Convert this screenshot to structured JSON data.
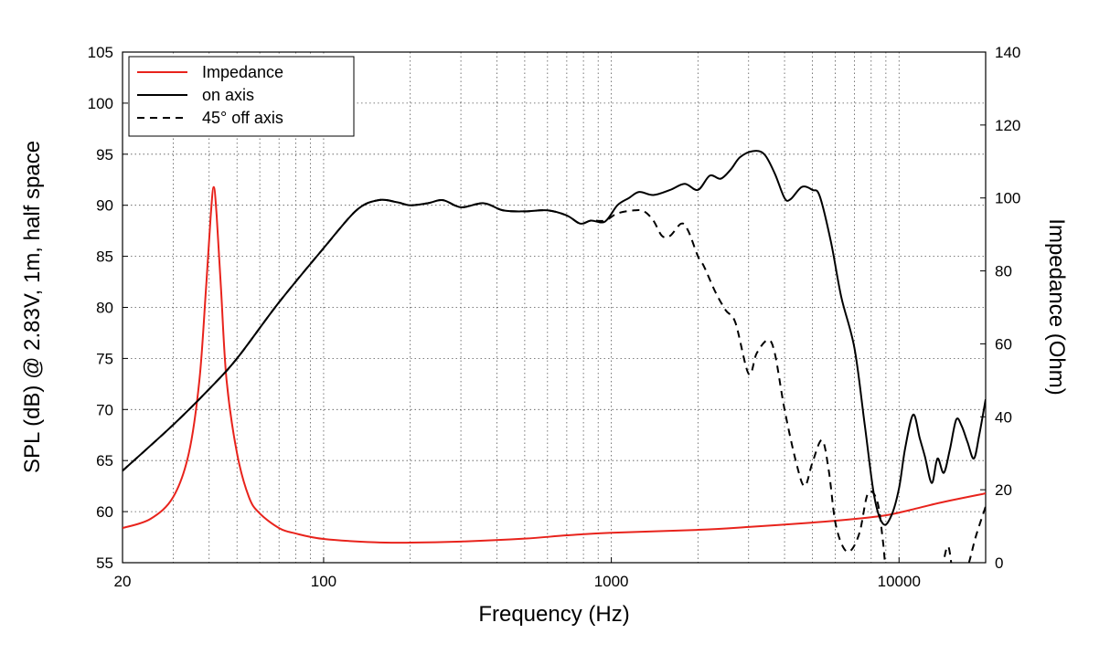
{
  "chart_data": {
    "type": "line",
    "title": "",
    "xlabel": "Frequency (Hz)",
    "ylabel": "SPL (dB) @ 2.83V, 1m, half space",
    "y2label": "Impedance (Ohm)",
    "x_scale": "log",
    "xlim": [
      20,
      20000
    ],
    "ylim": [
      55,
      105
    ],
    "y2lim": [
      0,
      140
    ],
    "x_ticks": [
      20,
      100,
      1000,
      10000
    ],
    "x_tick_labels": [
      "20",
      "100",
      "1000",
      "10000"
    ],
    "y_ticks": [
      55,
      60,
      65,
      70,
      75,
      80,
      85,
      90,
      95,
      100,
      105
    ],
    "y_tick_labels": [
      "55",
      "60",
      "65",
      "70",
      "75",
      "80",
      "85",
      "90",
      "95",
      "100",
      "105"
    ],
    "y2_ticks": [
      0,
      20,
      40,
      60,
      80,
      100,
      120,
      140
    ],
    "y2_tick_labels": [
      "0",
      "20",
      "40",
      "60",
      "80",
      "100",
      "120",
      "140"
    ],
    "grid": true,
    "legend_position": "top-left",
    "series": [
      {
        "name": "Impedance",
        "axis": "right",
        "color": "#e8231c",
        "dash": "solid",
        "points": [
          [
            20,
            9.5
          ],
          [
            25,
            12
          ],
          [
            30,
            18
          ],
          [
            34,
            30
          ],
          [
            37,
            50
          ],
          [
            39,
            75
          ],
          [
            40.5,
            95
          ],
          [
            41.5,
            103
          ],
          [
            42.5,
            95
          ],
          [
            44,
            75
          ],
          [
            46,
            50
          ],
          [
            50,
            30
          ],
          [
            55,
            18
          ],
          [
            60,
            13.5
          ],
          [
            70,
            9.5
          ],
          [
            80,
            8
          ],
          [
            100,
            6.5
          ],
          [
            150,
            5.6
          ],
          [
            200,
            5.5
          ],
          [
            300,
            5.8
          ],
          [
            500,
            6.6
          ],
          [
            700,
            7.5
          ],
          [
            1000,
            8.2
          ],
          [
            2000,
            9
          ],
          [
            3000,
            9.8
          ],
          [
            5000,
            11
          ],
          [
            7000,
            12
          ],
          [
            9000,
            13
          ],
          [
            11000,
            14.5
          ],
          [
            14000,
            16.5
          ],
          [
            20000,
            19
          ]
        ]
      },
      {
        "name": "on axis",
        "axis": "left",
        "color": "#000000",
        "dash": "solid",
        "points": [
          [
            20,
            64
          ],
          [
            30,
            68.5
          ],
          [
            40,
            72
          ],
          [
            50,
            75
          ],
          [
            70,
            80.5
          ],
          [
            100,
            85.8
          ],
          [
            130,
            89.5
          ],
          [
            155,
            90.5
          ],
          [
            180,
            90.3
          ],
          [
            200,
            90
          ],
          [
            230,
            90.2
          ],
          [
            260,
            90.5
          ],
          [
            300,
            89.8
          ],
          [
            360,
            90.2
          ],
          [
            420,
            89.5
          ],
          [
            500,
            89.4
          ],
          [
            600,
            89.5
          ],
          [
            700,
            89
          ],
          [
            780,
            88.2
          ],
          [
            850,
            88.5
          ],
          [
            950,
            88.4
          ],
          [
            1050,
            90
          ],
          [
            1150,
            90.7
          ],
          [
            1250,
            91.3
          ],
          [
            1400,
            91
          ],
          [
            1600,
            91.5
          ],
          [
            1800,
            92.1
          ],
          [
            2000,
            91.5
          ],
          [
            2200,
            92.9
          ],
          [
            2400,
            92.6
          ],
          [
            2600,
            93.5
          ],
          [
            2800,
            94.7
          ],
          [
            3100,
            95.3
          ],
          [
            3400,
            95
          ],
          [
            3700,
            93.1
          ],
          [
            4000,
            90.7
          ],
          [
            4200,
            90.6
          ],
          [
            4600,
            91.8
          ],
          [
            5000,
            91.5
          ],
          [
            5300,
            90.9
          ],
          [
            5800,
            86.4
          ],
          [
            6300,
            81
          ],
          [
            7000,
            76
          ],
          [
            7600,
            68.5
          ],
          [
            8200,
            61.5
          ],
          [
            8800,
            58.8
          ],
          [
            9400,
            59.6
          ],
          [
            10000,
            62.3
          ],
          [
            10500,
            66.2
          ],
          [
            11200,
            69.5
          ],
          [
            11800,
            67.2
          ],
          [
            12300,
            65.4
          ],
          [
            13000,
            62.8
          ],
          [
            13600,
            65.2
          ],
          [
            14300,
            63.8
          ],
          [
            15000,
            66
          ],
          [
            15800,
            69
          ],
          [
            16500,
            68.4
          ],
          [
            17300,
            66.8
          ],
          [
            18200,
            65.2
          ],
          [
            19000,
            67.5
          ],
          [
            20000,
            71
          ]
        ]
      },
      {
        "name": "45° off axis",
        "axis": "left",
        "color": "#000000",
        "dash": "dashed",
        "points": [
          [
            20,
            64
          ],
          [
            30,
            68.5
          ],
          [
            40,
            72
          ],
          [
            50,
            75
          ],
          [
            70,
            80.5
          ],
          [
            100,
            85.8
          ],
          [
            130,
            89.5
          ],
          [
            155,
            90.5
          ],
          [
            180,
            90.3
          ],
          [
            200,
            90
          ],
          [
            230,
            90.2
          ],
          [
            260,
            90.5
          ],
          [
            300,
            89.8
          ],
          [
            360,
            90.2
          ],
          [
            420,
            89.5
          ],
          [
            500,
            89.4
          ],
          [
            600,
            89.5
          ],
          [
            700,
            89
          ],
          [
            780,
            88.2
          ],
          [
            850,
            88.5
          ],
          [
            950,
            88.5
          ],
          [
            1050,
            89.2
          ],
          [
            1200,
            89.5
          ],
          [
            1300,
            89.4
          ],
          [
            1400,
            88.5
          ],
          [
            1500,
            87
          ],
          [
            1600,
            87
          ],
          [
            1750,
            88.2
          ],
          [
            1850,
            87.5
          ],
          [
            2000,
            85
          ],
          [
            2100,
            84
          ],
          [
            2300,
            81.5
          ],
          [
            2500,
            79.7
          ],
          [
            2700,
            78.5
          ],
          [
            3000,
            73.5
          ],
          [
            3200,
            75.5
          ],
          [
            3500,
            76.8
          ],
          [
            3700,
            75.5
          ],
          [
            4000,
            70
          ],
          [
            4400,
            64.7
          ],
          [
            4700,
            62.5
          ],
          [
            5000,
            64.8
          ],
          [
            5400,
            67
          ],
          [
            5700,
            64
          ],
          [
            6000,
            59
          ],
          [
            6400,
            56.5
          ],
          [
            6800,
            56.2
          ],
          [
            7300,
            58
          ],
          [
            7800,
            61.8
          ],
          [
            8400,
            61
          ],
          [
            8800,
            57
          ],
          [
            9100,
            53
          ],
          [
            9800,
            50.5
          ],
          [
            10500,
            52
          ],
          [
            11500,
            55
          ],
          [
            12000,
            54
          ],
          [
            13000,
            51
          ],
          [
            14000,
            54
          ],
          [
            14800,
            56.6
          ],
          [
            15500,
            53.5
          ],
          [
            16500,
            53
          ],
          [
            17500,
            55
          ],
          [
            18500,
            57.6
          ],
          [
            20000,
            60.5
          ]
        ]
      }
    ]
  }
}
